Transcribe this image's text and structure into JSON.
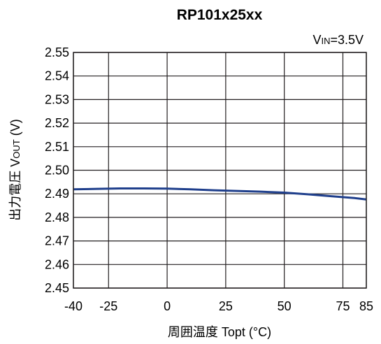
{
  "chart_data": {
    "type": "line",
    "title": "RP101x25xx",
    "condition": {
      "main": "V",
      "sub": "IN",
      "suffix": "=3.5V"
    },
    "xlabel": "周囲温度 Topt (°C)",
    "ylabel": {
      "prefix": "出力電圧 V",
      "sub": "OUT",
      "suffix": " (V)"
    },
    "xlim": [
      -40,
      85
    ],
    "ylim": [
      2.45,
      2.55
    ],
    "xticks": [
      -40,
      -25,
      0,
      25,
      50,
      75,
      85
    ],
    "yticks": [
      "2.45",
      "2.46",
      "2.47",
      "2.48",
      "2.49",
      "2.50",
      "2.51",
      "2.52",
      "2.53",
      "2.54",
      "2.55"
    ],
    "grid": true,
    "line_color": "#1f3f8c",
    "series": [
      {
        "x": [
          -40,
          -30,
          -20,
          -10,
          0,
          10,
          20,
          30,
          40,
          50,
          60,
          70,
          80,
          85
        ],
        "y": [
          2.4919,
          2.4921,
          2.4923,
          2.4923,
          2.4922,
          2.4919,
          2.4915,
          2.4912,
          2.4909,
          2.4905,
          2.4898,
          2.489,
          2.4882,
          2.4876
        ]
      }
    ]
  }
}
